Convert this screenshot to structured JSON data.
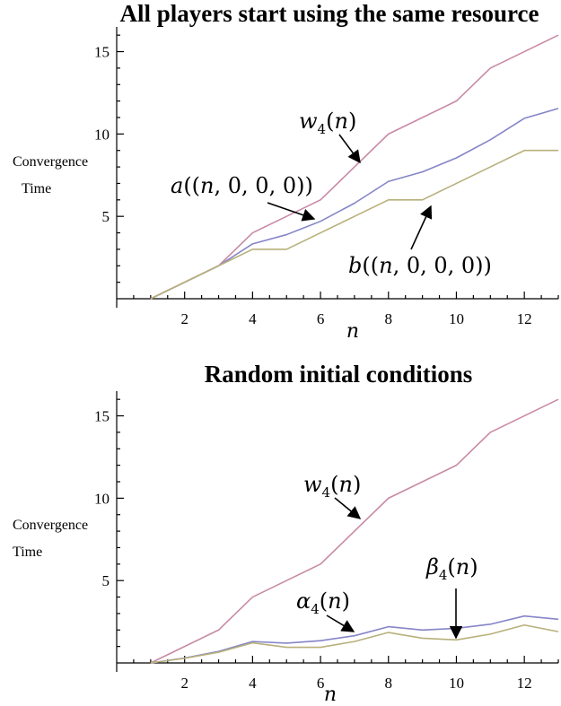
{
  "chart_data": [
    {
      "type": "line",
      "title": "All players start using the same resource",
      "xlabel": "n",
      "ylabel": [
        "Convergence",
        "Time"
      ],
      "xlim": [
        0,
        13
      ],
      "ylim": [
        0,
        16.5
      ],
      "xticks": [
        2,
        4,
        6,
        8,
        10,
        12
      ],
      "yticks": [
        5,
        10,
        15
      ],
      "grid": false,
      "x": [
        1,
        2,
        3,
        4,
        5,
        6,
        7,
        8,
        9,
        10,
        11,
        12,
        13
      ],
      "series": [
        {
          "key": "w",
          "color": "#c98aa6",
          "values": [
            0,
            1,
            2,
            4,
            5,
            6,
            8,
            10,
            11,
            12,
            14,
            15,
            16
          ]
        },
        {
          "key": "a",
          "color": "#8585c8",
          "values": [
            0,
            1,
            2,
            3.33,
            3.89,
            4.7,
            5.8,
            7.12,
            7.7,
            8.55,
            9.65,
            10.95,
            11.55
          ]
        },
        {
          "key": "b",
          "color": "#b8b07a",
          "values": [
            0,
            1,
            2,
            3,
            3,
            4,
            5,
            6,
            6,
            7,
            8,
            9,
            9
          ]
        }
      ],
      "annotations": [
        {
          "text": "w4(n)",
          "sub": "4",
          "name": "w",
          "target": [
            7.2,
            8.2
          ]
        },
        {
          "text": "a((n,0,0,0))",
          "name": "a",
          "target": [
            6.0,
            4.9
          ]
        },
        {
          "text": "b((n,0,0,0))",
          "name": "b",
          "target": [
            9.4,
            5.6
          ]
        }
      ]
    },
    {
      "type": "line",
      "title": "Random initial conditions",
      "xlabel": "n",
      "ylabel": [
        "Convergence",
        "Time"
      ],
      "xlim": [
        0,
        13
      ],
      "ylim": [
        0,
        16.5
      ],
      "xticks": [
        2,
        4,
        6,
        8,
        10,
        12
      ],
      "yticks": [
        5,
        10,
        15
      ],
      "grid": false,
      "x": [
        1,
        2,
        3,
        4,
        5,
        6,
        7,
        8,
        9,
        10,
        11,
        12,
        13
      ],
      "series": [
        {
          "key": "w",
          "color": "#c98aa6",
          "values": [
            0,
            1,
            2,
            4,
            5,
            6,
            8,
            10,
            11,
            12,
            14,
            15,
            16
          ]
        },
        {
          "key": "alpha",
          "color": "#8585c8",
          "values": [
            0,
            0.3,
            0.7,
            1.3,
            1.2,
            1.35,
            1.65,
            2.2,
            2.0,
            2.1,
            2.35,
            2.85,
            2.65
          ]
        },
        {
          "key": "beta",
          "color": "#b8b07a",
          "values": [
            0,
            0.28,
            0.65,
            1.22,
            0.95,
            0.95,
            1.3,
            1.85,
            1.5,
            1.4,
            1.75,
            2.3,
            1.9
          ]
        }
      ],
      "annotations": [
        {
          "text": "w4(n)",
          "name": "w",
          "target": [
            7.2,
            8.7
          ]
        },
        {
          "text": "α4(n)",
          "name": "alpha",
          "target": [
            7.0,
            1.8
          ]
        },
        {
          "text": "β4(n)",
          "name": "beta",
          "target": [
            10.0,
            1.35
          ]
        }
      ]
    }
  ]
}
